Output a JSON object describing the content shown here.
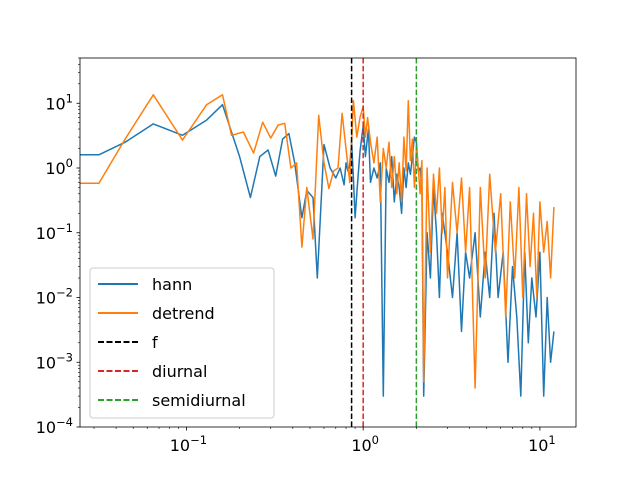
{
  "chart_data": {
    "type": "line",
    "title": "",
    "xlabel": "",
    "ylabel": "",
    "xscale": "log",
    "yscale": "log",
    "xlim": [
      0.025,
      16
    ],
    "ylim": [
      0.0001,
      50
    ],
    "grid": false,
    "legend_position": "lower-left",
    "x_ticks": [
      {
        "value": 0.1,
        "base": "10",
        "exp": "−1"
      },
      {
        "value": 1,
        "base": "10",
        "exp": "0"
      },
      {
        "value": 10,
        "base": "10",
        "exp": "1"
      }
    ],
    "y_ticks": [
      {
        "value": 10,
        "base": "10",
        "exp": "1"
      },
      {
        "value": 1,
        "base": "10",
        "exp": "0"
      },
      {
        "value": 0.1,
        "base": "10",
        "exp": "−1"
      },
      {
        "value": 0.01,
        "base": "10",
        "exp": "−2"
      },
      {
        "value": 0.001,
        "base": "10",
        "exp": "−3"
      },
      {
        "value": 0.0001,
        "base": "10",
        "exp": "−4"
      }
    ],
    "series": [
      {
        "name": "hann",
        "color": "#1f77b4",
        "points": [
          [
            0.025,
            1.6
          ],
          [
            0.032,
            1.6
          ],
          [
            0.045,
            2.5
          ],
          [
            0.065,
            4.8
          ],
          [
            0.095,
            3.2
          ],
          [
            0.13,
            5.5
          ],
          [
            0.16,
            9.5
          ],
          [
            0.2,
            1.5
          ],
          [
            0.23,
            0.35
          ],
          [
            0.26,
            1.5
          ],
          [
            0.29,
            1.9
          ],
          [
            0.32,
            0.75
          ],
          [
            0.35,
            2.8
          ],
          [
            0.38,
            3.4
          ],
          [
            0.41,
            1.2
          ],
          [
            0.45,
            0.17
          ],
          [
            0.48,
            0.45
          ],
          [
            0.52,
            0.35
          ],
          [
            0.55,
            0.02
          ],
          [
            0.6,
            2.3
          ],
          [
            0.65,
            1.0
          ],
          [
            0.7,
            0.7
          ],
          [
            0.74,
            1.0
          ],
          [
            0.78,
            0.55
          ],
          [
            0.8,
            1.2
          ],
          [
            0.82,
            0.9
          ],
          [
            0.84,
            1.1
          ],
          [
            0.86,
            2.5
          ],
          [
            0.88,
            0.7
          ],
          [
            0.9,
            0.17
          ],
          [
            0.93,
            0.6
          ],
          [
            0.96,
            1.8
          ],
          [
            1.0,
            4.5
          ],
          [
            1.03,
            1.5
          ],
          [
            1.07,
            4.0
          ],
          [
            1.1,
            0.6
          ],
          [
            1.15,
            1.0
          ],
          [
            1.2,
            0.7
          ],
          [
            1.25,
            1.2
          ],
          [
            1.3,
            0.0003
          ],
          [
            1.35,
            1.0
          ],
          [
            1.4,
            0.6
          ],
          [
            1.45,
            1.5
          ],
          [
            1.5,
            0.3
          ],
          [
            1.55,
            0.8
          ],
          [
            1.6,
            0.5
          ],
          [
            1.65,
            0.2
          ],
          [
            1.7,
            1.0
          ],
          [
            1.75,
            0.5
          ],
          [
            1.8,
            1.2
          ],
          [
            1.85,
            0.8
          ],
          [
            1.9,
            1.5
          ],
          [
            1.95,
            3.0
          ],
          [
            2.0,
            2.5
          ],
          [
            2.05,
            0.9
          ],
          [
            2.1,
            1.0
          ],
          [
            2.15,
            0.5
          ],
          [
            2.2,
            0.0003
          ],
          [
            2.3,
            0.1
          ],
          [
            2.4,
            0.02
          ],
          [
            2.5,
            0.5
          ],
          [
            2.6,
            0.1
          ],
          [
            2.7,
            0.01
          ],
          [
            2.8,
            0.2
          ],
          [
            3.0,
            0.05
          ],
          [
            3.2,
            0.01
          ],
          [
            3.4,
            0.1
          ],
          [
            3.6,
            0.003
          ],
          [
            3.8,
            0.05
          ],
          [
            4.0,
            0.02
          ],
          [
            4.3,
            0.1
          ],
          [
            4.6,
            0.005
          ],
          [
            4.9,
            0.05
          ],
          [
            5.2,
            0.01
          ],
          [
            5.5,
            0.2
          ],
          [
            5.8,
            0.01
          ],
          [
            6.2,
            0.05
          ],
          [
            6.6,
            0.001
          ],
          [
            7.0,
            0.03
          ],
          [
            7.4,
            0.005
          ],
          [
            7.8,
            0.0003
          ],
          [
            8.2,
            0.05
          ],
          [
            8.6,
            0.002
          ],
          [
            9.0,
            0.02
          ],
          [
            9.5,
            0.005
          ],
          [
            10.0,
            0.05
          ],
          [
            10.5,
            0.0003
          ],
          [
            11.0,
            0.01
          ],
          [
            11.5,
            0.001
          ],
          [
            12.0,
            0.003
          ]
        ]
      },
      {
        "name": "detrend",
        "color": "#ff7f0e",
        "points": [
          [
            0.025,
            0.58
          ],
          [
            0.032,
            0.58
          ],
          [
            0.045,
            2.8
          ],
          [
            0.065,
            13.5
          ],
          [
            0.095,
            2.7
          ],
          [
            0.13,
            9.5
          ],
          [
            0.16,
            13.5
          ],
          [
            0.18,
            3.2
          ],
          [
            0.21,
            3.6
          ],
          [
            0.24,
            1.7
          ],
          [
            0.27,
            5.1
          ],
          [
            0.3,
            2.9
          ],
          [
            0.33,
            4.6
          ],
          [
            0.36,
            4.9
          ],
          [
            0.39,
            1.0
          ],
          [
            0.42,
            1.2
          ],
          [
            0.45,
            0.06
          ],
          [
            0.48,
            0.5
          ],
          [
            0.52,
            0.08
          ],
          [
            0.56,
            6.5
          ],
          [
            0.6,
            1.2
          ],
          [
            0.64,
            0.48
          ],
          [
            0.68,
            0.9
          ],
          [
            0.72,
            1.0
          ],
          [
            0.76,
            7.0
          ],
          [
            0.8,
            2.0
          ],
          [
            0.84,
            0.6
          ],
          [
            0.88,
            11.0
          ],
          [
            0.92,
            3.0
          ],
          [
            0.96,
            6.0
          ],
          [
            1.0,
            9.0
          ],
          [
            1.03,
            3.0
          ],
          [
            1.06,
            6.0
          ],
          [
            1.1,
            2.5
          ],
          [
            1.15,
            1.2
          ],
          [
            1.2,
            3.0
          ],
          [
            1.25,
            0.3
          ],
          [
            1.3,
            2.0
          ],
          [
            1.35,
            1.0
          ],
          [
            1.4,
            2.5
          ],
          [
            1.45,
            0.5
          ],
          [
            1.5,
            1.5
          ],
          [
            1.55,
            0.4
          ],
          [
            1.6,
            1.2
          ],
          [
            1.65,
            0.3
          ],
          [
            1.7,
            3.0
          ],
          [
            1.75,
            0.9
          ],
          [
            1.8,
            11.0
          ],
          [
            1.85,
            1.3
          ],
          [
            1.9,
            2.8
          ],
          [
            1.95,
            0.5
          ],
          [
            2.0,
            2.0
          ],
          [
            2.05,
            1.0
          ],
          [
            2.1,
            0.4
          ],
          [
            2.15,
            1.3
          ],
          [
            2.2,
            0.0005
          ],
          [
            2.3,
            1.0
          ],
          [
            2.4,
            0.05
          ],
          [
            2.5,
            0.8
          ],
          [
            2.6,
            0.2
          ],
          [
            2.7,
            1.0
          ],
          [
            2.8,
            0.1
          ],
          [
            2.9,
            0.5
          ],
          [
            3.0,
            0.02
          ],
          [
            3.2,
            0.6
          ],
          [
            3.4,
            0.1
          ],
          [
            3.6,
            0.7
          ],
          [
            3.8,
            0.05
          ],
          [
            4.0,
            0.5
          ],
          [
            4.3,
            0.0004
          ],
          [
            4.6,
            0.5
          ],
          [
            4.9,
            0.02
          ],
          [
            5.2,
            0.8
          ],
          [
            5.6,
            0.05
          ],
          [
            6.0,
            0.4
          ],
          [
            6.4,
            0.005
          ],
          [
            6.8,
            0.3
          ],
          [
            7.2,
            0.02
          ],
          [
            7.6,
            0.5
          ],
          [
            8.0,
            0.01
          ],
          [
            8.4,
            0.4
          ],
          [
            8.8,
            0.03
          ],
          [
            9.2,
            0.2
          ],
          [
            9.6,
            0.01
          ],
          [
            10.0,
            0.3
          ],
          [
            10.5,
            0.05
          ],
          [
            11.0,
            0.15
          ],
          [
            11.5,
            0.02
          ],
          [
            12.0,
            0.25
          ]
        ]
      }
    ],
    "vlines": [
      {
        "name": "f",
        "x": 0.86,
        "color": "#000000"
      },
      {
        "name": "diurnal",
        "x": 1.0,
        "color": "#d62728"
      },
      {
        "name": "semidiurnal",
        "x": 2.0,
        "color": "#2ca02c"
      }
    ]
  }
}
